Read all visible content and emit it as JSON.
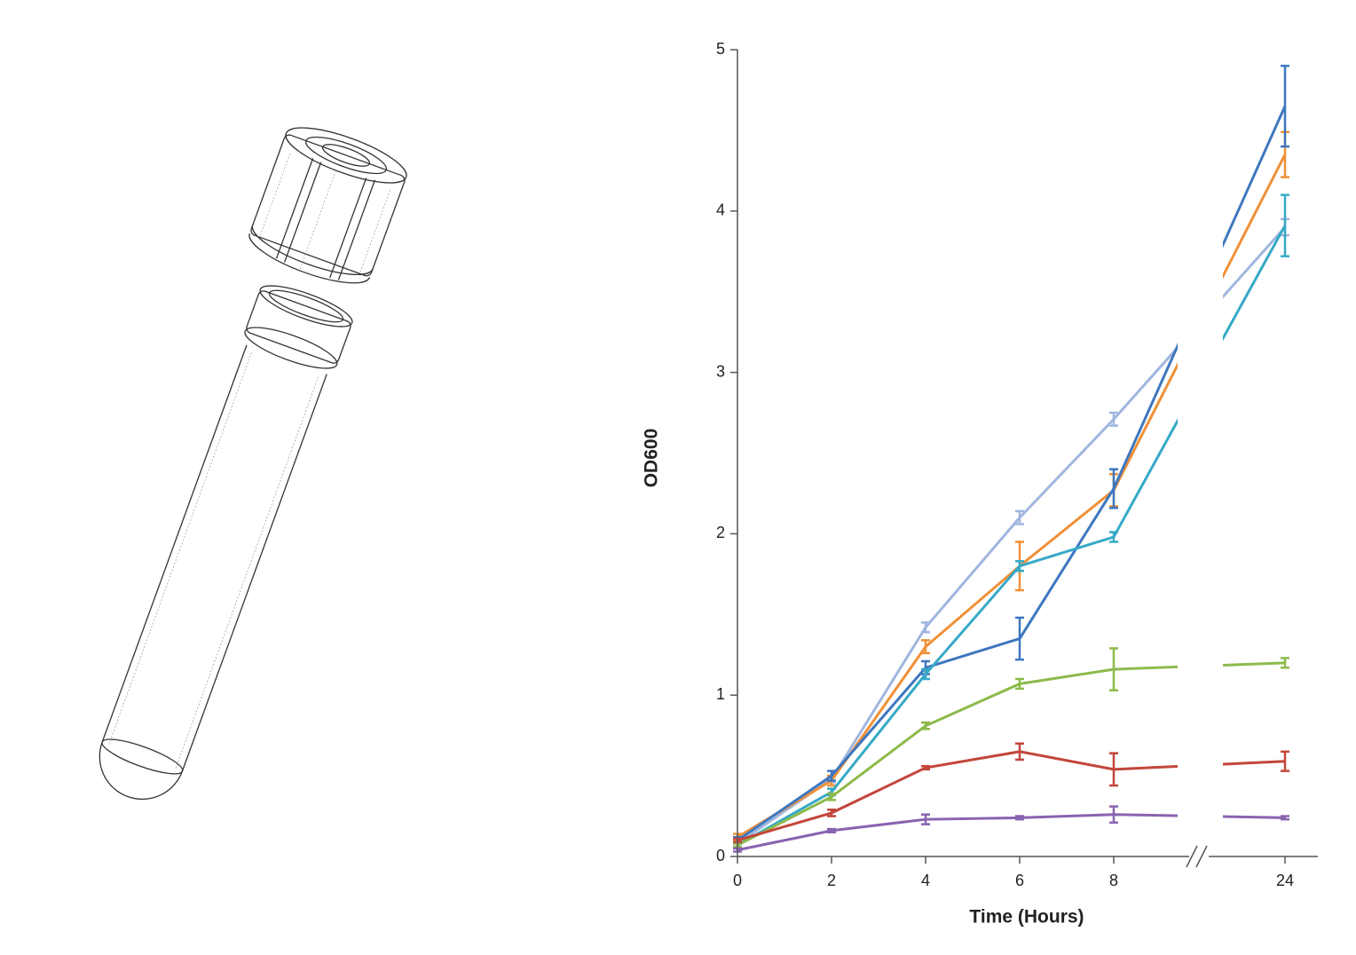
{
  "chart_data": {
    "type": "line",
    "x_label": "Time (Hours)",
    "y_label": "OD600",
    "x": [
      0,
      2,
      4,
      6,
      8,
      24
    ],
    "xlim": [
      0,
      24
    ],
    "xticks": [
      0,
      2,
      4,
      6,
      8,
      24
    ],
    "ylim": [
      0,
      5
    ],
    "yticks": [
      0,
      1,
      2,
      3,
      4,
      5
    ],
    "axis_break": true,
    "series": [
      {
        "color": "#a0b6df",
        "values": [
          0.08,
          0.48,
          1.42,
          2.1,
          2.71,
          3.9
        ],
        "errors": [
          0.02,
          0.02,
          0.03,
          0.04,
          0.04,
          0.05
        ]
      },
      {
        "color": "#ef9038",
        "values": [
          0.12,
          0.47,
          1.3,
          1.8,
          2.27,
          4.35
        ],
        "errors": [
          0.02,
          0.03,
          0.04,
          0.15,
          0.1,
          0.14
        ]
      },
      {
        "color": "#3e77bf",
        "values": [
          0.1,
          0.5,
          1.17,
          1.35,
          2.28,
          4.65
        ],
        "errors": [
          0.02,
          0.03,
          0.04,
          0.13,
          0.12,
          0.25
        ]
      },
      {
        "color": "#36a9c7",
        "values": [
          0.07,
          0.4,
          1.13,
          1.8,
          1.98,
          3.91
        ],
        "errors": [
          0.02,
          0.02,
          0.03,
          0.03,
          0.03,
          0.19
        ]
      },
      {
        "color": "#8dba4b",
        "values": [
          0.07,
          0.37,
          0.81,
          1.07,
          1.16,
          1.2
        ],
        "errors": [
          0.01,
          0.02,
          0.02,
          0.03,
          0.13,
          0.03
        ]
      },
      {
        "color": "#c3463b",
        "values": [
          0.1,
          0.27,
          0.55,
          0.65,
          0.54,
          0.59
        ],
        "errors": [
          0.01,
          0.02,
          0.01,
          0.05,
          0.1,
          0.06
        ]
      },
      {
        "color": "#8963b0",
        "values": [
          0.04,
          0.16,
          0.23,
          0.24,
          0.26,
          0.24
        ],
        "errors": [
          0.01,
          0.01,
          0.03,
          0.01,
          0.05,
          0.01
        ]
      }
    ]
  }
}
